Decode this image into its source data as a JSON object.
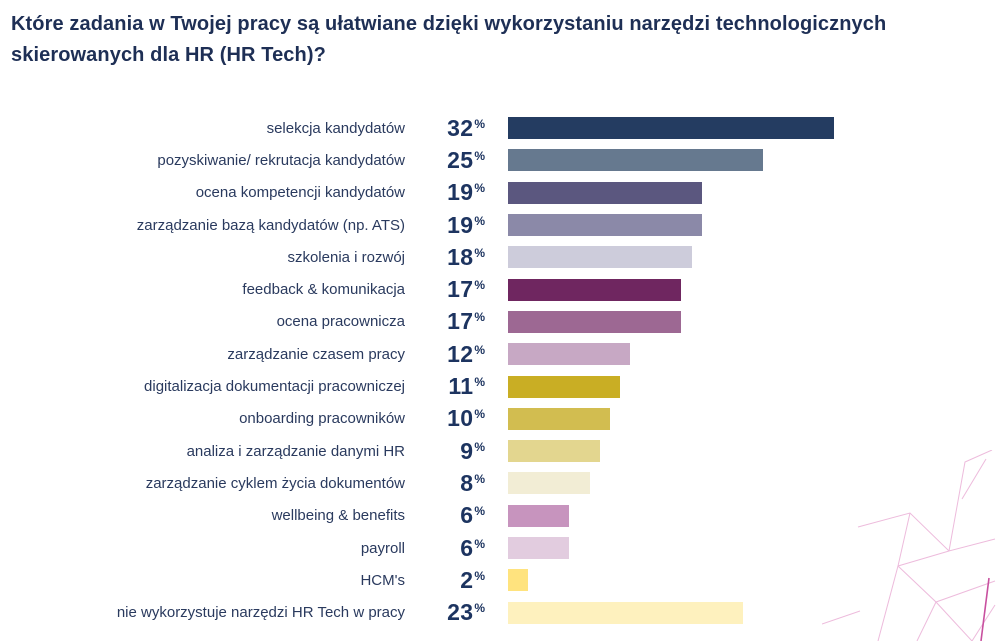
{
  "title": "Które zadania w Twojej pracy są ułatwiane dzięki wykorzystaniu narzędzi technologicznych skierowanych dla HR (HR Tech)?",
  "chart_data": {
    "type": "bar",
    "orientation": "horizontal",
    "title": "Które zadania w Twojej pracy są ułatwiane dzięki wykorzystaniu narzędzi technologicznych skierowanych dla HR (HR Tech)?",
    "unit": "%",
    "xlim": [
      0,
      32
    ],
    "grid": false,
    "legend": "none",
    "value_label_position": "left-of-bar",
    "categories": [
      "selekcja kandydatów",
      "pozyskiwanie/ rekrutacja kandydatów",
      "ocena kompetencji kandydatów",
      "zarządzanie bazą kandydatów (np. ATS)",
      "szkolenia i rozwój",
      "feedback & komunikacja",
      "ocena pracownicza",
      "zarządzanie czasem pracy",
      "digitalizacja dokumentacji pracowniczej",
      "onboarding pracowników",
      "analiza i zarządzanie danymi HR",
      "zarządzanie cyklem życia dokumentów",
      "wellbeing & benefits",
      "payroll",
      "HCM's",
      "nie wykorzystuje narzędzi HR Tech w pracy"
    ],
    "values": [
      32,
      25,
      19,
      19,
      18,
      17,
      17,
      12,
      11,
      10,
      9,
      8,
      6,
      6,
      2,
      23
    ],
    "bar_colors": [
      "#243C61",
      "#66798F",
      "#5B577F",
      "#8B89A8",
      "#CDCCDB",
      "#6F2660",
      "#9D6893",
      "#C7A8C4",
      "#C9AE24",
      "#D2BD50",
      "#E3D68F",
      "#F2EDD5",
      "#C794BE",
      "#E2CCDF",
      "#FFE37E",
      "#FEF1BE"
    ]
  },
  "style": {
    "title_color": "#1e2f55",
    "label_color": "#2a3a5e",
    "value_color": "#1d3460",
    "decor_line": "#EDBBDC",
    "decor_line_strong": "#C8509F",
    "background": "#ffffff"
  }
}
